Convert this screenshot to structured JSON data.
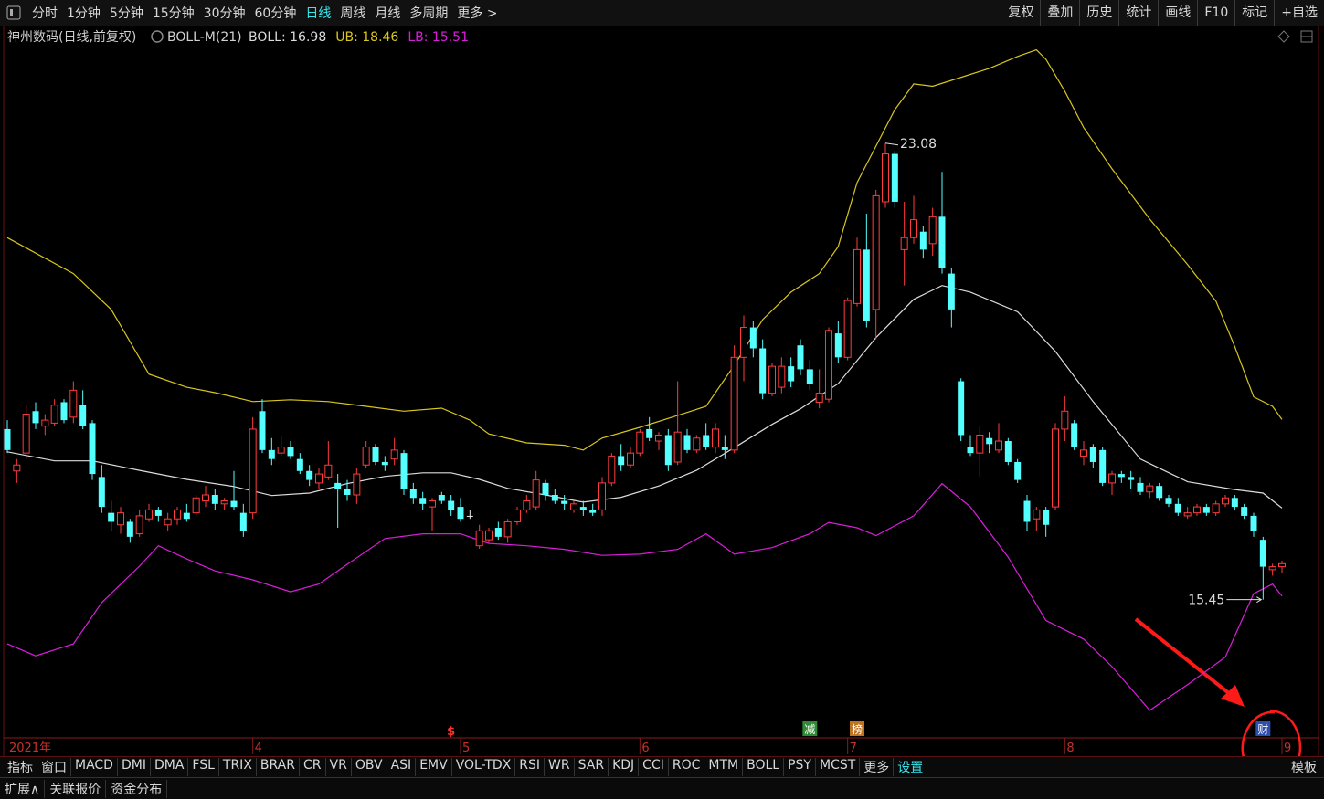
{
  "toolbar": {
    "left": [
      "分时",
      "1分钟",
      "5分钟",
      "15分钟",
      "30分钟",
      "60分钟",
      "日线",
      "周线",
      "月线",
      "多周期",
      "更多 >"
    ],
    "active_index": 6,
    "right": [
      "复权",
      "叠加",
      "历史",
      "统计",
      "画线",
      "F10",
      "标记",
      "+自选"
    ]
  },
  "chart_data": {
    "type": "candlestick",
    "title": "神州数码(日线,前复权)",
    "indicator": "BOLL-M(21)",
    "categories": [
      "2021年",
      null,
      null,
      null,
      null,
      null,
      null,
      null,
      null,
      null,
      null,
      null,
      null,
      null,
      null,
      null,
      null,
      null,
      null,
      null,
      null,
      null,
      null,
      null,
      null,
      null,
      "4",
      null,
      null,
      null,
      null,
      null,
      null,
      null,
      null,
      null,
      null,
      null,
      null,
      null,
      null,
      null,
      null,
      null,
      null,
      null,
      null,
      null,
      "5",
      null,
      null,
      null,
      null,
      null,
      null,
      null,
      null,
      null,
      null,
      null,
      null,
      null,
      null,
      null,
      null,
      null,
      null,
      "6",
      null,
      null,
      null,
      null,
      null,
      null,
      null,
      null,
      null,
      null,
      null,
      null,
      null,
      null,
      null,
      null,
      null,
      null,
      null,
      null,
      null,
      "7",
      null,
      null,
      null,
      null,
      null,
      null,
      null,
      null,
      null,
      null,
      null,
      null,
      null,
      null,
      null,
      null,
      null,
      null,
      null,
      null,
      null,
      null,
      "8",
      null,
      null,
      null,
      null,
      null,
      null,
      null,
      null,
      null,
      null,
      null,
      null,
      null,
      null,
      null,
      null,
      null,
      null,
      null,
      null,
      null,
      null,
      "9"
    ],
    "open": [
      18.3,
      17.6,
      17.9,
      18.6,
      18.35,
      18.4,
      18.75,
      18.5,
      18.7,
      18.4,
      17.5,
      16.9,
      16.7,
      16.75,
      16.55,
      16.8,
      16.95,
      16.7,
      16.8,
      16.9,
      16.9,
      17.1,
      17.2,
      17.05,
      17.1,
      16.9,
      16.9,
      18.6,
      17.95,
      17.9,
      18.0,
      17.8,
      17.6,
      17.4,
      17.5,
      17.4,
      17.3,
      17.2,
      17.7,
      18.0,
      17.75,
      17.8,
      17.9,
      17.3,
      17.15,
      17.0,
      17.2,
      17.1,
      17.0,
      16.85,
      16.35,
      16.45,
      16.65,
      16.5,
      16.75,
      16.95,
      17.0,
      17.4,
      17.2,
      17.1,
      16.95,
      17.0,
      16.95,
      16.95,
      17.4,
      17.85,
      17.7,
      17.9,
      18.3,
      18.1,
      18.2,
      17.75,
      18.2,
      17.95,
      18.2,
      18.0,
      18.0,
      17.95,
      19.5,
      20.0,
      19.65,
      18.9,
      19.0,
      19.35,
      19.7,
      19.3,
      18.75,
      18.8,
      19.9,
      19.5,
      20.4,
      21.3,
      20.3,
      22.1,
      22.9,
      21.3,
      21.5,
      21.6,
      21.4,
      21.85,
      20.9,
      19.1,
      18.0,
      17.9,
      18.15,
      17.95,
      18.1,
      17.75,
      17.1,
      16.8,
      16.95,
      17.0,
      18.3,
      18.4,
      17.85,
      18.0,
      17.95,
      17.4,
      17.55,
      17.5,
      17.4,
      17.25,
      17.35,
      17.15,
      17.05,
      16.85,
      16.9,
      17.0,
      16.9,
      17.05,
      17.15,
      17.0,
      16.85,
      16.45,
      15.95,
      16.0
    ],
    "high": [
      18.45,
      17.8,
      18.7,
      18.75,
      18.55,
      18.8,
      18.8,
      19.1,
      18.95,
      18.45,
      17.7,
      17.1,
      17.0,
      16.8,
      16.95,
      17.05,
      17.0,
      16.9,
      17.0,
      17.05,
      17.2,
      17.35,
      17.3,
      17.15,
      17.6,
      17.05,
      18.5,
      18.8,
      18.15,
      18.2,
      18.1,
      17.9,
      17.7,
      17.65,
      18.1,
      17.55,
      17.45,
      17.65,
      18.1,
      18.05,
      17.85,
      18.15,
      17.95,
      17.4,
      17.25,
      17.15,
      17.25,
      17.2,
      17.15,
      16.95,
      16.7,
      16.65,
      16.75,
      16.8,
      17.0,
      17.2,
      17.6,
      17.45,
      17.3,
      17.2,
      17.1,
      17.1,
      17.05,
      17.5,
      17.9,
      18.05,
      18.0,
      18.3,
      18.5,
      18.25,
      18.3,
      19.1,
      18.3,
      18.2,
      18.4,
      18.4,
      18.2,
      19.7,
      20.2,
      20.1,
      19.8,
      19.4,
      19.5,
      19.5,
      19.8,
      19.45,
      19.3,
      20.0,
      20.1,
      20.5,
      21.5,
      21.9,
      22.3,
      23.08,
      22.95,
      22.1,
      22.2,
      21.7,
      22.0,
      22.6,
      21.0,
      19.15,
      18.2,
      18.35,
      18.25,
      18.4,
      18.15,
      17.8,
      17.2,
      17.0,
      17.0,
      18.4,
      18.85,
      18.45,
      18.1,
      18.05,
      18.0,
      17.6,
      17.6,
      17.6,
      17.5,
      17.4,
      17.4,
      17.2,
      17.15,
      17.0,
      17.05,
      17.05,
      17.1,
      17.2,
      17.2,
      17.05,
      16.9,
      16.5,
      16.05,
      16.1
    ],
    "low": [
      17.9,
      17.4,
      17.8,
      18.3,
      18.2,
      18.35,
      18.4,
      18.4,
      18.3,
      17.45,
      16.9,
      16.6,
      16.55,
      16.4,
      16.5,
      16.75,
      16.75,
      16.6,
      16.7,
      16.75,
      16.85,
      17.0,
      16.95,
      16.95,
      16.95,
      16.5,
      16.8,
      17.9,
      17.7,
      17.85,
      17.8,
      17.55,
      17.35,
      17.3,
      17.45,
      16.65,
      17.1,
      17.05,
      17.65,
      17.7,
      17.6,
      17.7,
      17.2,
      17.05,
      16.95,
      16.6,
      17.05,
      16.85,
      16.75,
      16.8,
      16.3,
      16.4,
      16.45,
      16.4,
      16.7,
      16.9,
      16.95,
      17.1,
      17.05,
      16.95,
      16.9,
      16.85,
      16.85,
      16.85,
      17.35,
      17.6,
      17.65,
      17.85,
      18.1,
      17.95,
      17.6,
      17.7,
      17.9,
      17.9,
      17.95,
      17.9,
      17.8,
      17.9,
      19.1,
      19.5,
      18.8,
      18.85,
      18.9,
      19.0,
      19.2,
      18.95,
      18.65,
      18.75,
      19.4,
      19.45,
      20.35,
      20.0,
      19.8,
      22.0,
      22.0,
      20.7,
      21.4,
      21.15,
      21.2,
      20.9,
      20.0,
      18.1,
      17.85,
      17.5,
      17.9,
      17.9,
      17.7,
      17.4,
      16.6,
      16.6,
      16.5,
      16.95,
      18.1,
      17.95,
      17.7,
      17.65,
      17.35,
      17.2,
      17.4,
      17.3,
      17.2,
      17.15,
      17.1,
      17.0,
      16.85,
      16.8,
      16.85,
      16.85,
      16.85,
      17.0,
      16.95,
      16.8,
      16.5,
      15.45,
      15.85,
      15.9
    ],
    "close": [
      17.95,
      17.7,
      18.55,
      18.4,
      18.45,
      18.7,
      18.45,
      18.95,
      18.35,
      17.55,
      17.0,
      16.75,
      16.9,
      16.5,
      16.85,
      16.95,
      16.85,
      16.8,
      16.95,
      16.8,
      17.15,
      17.2,
      17.05,
      17.1,
      17.0,
      16.6,
      18.3,
      17.95,
      17.8,
      18.0,
      17.85,
      17.6,
      17.45,
      17.55,
      17.7,
      17.3,
      17.2,
      17.55,
      18.0,
      17.75,
      17.7,
      17.95,
      17.3,
      17.15,
      17.05,
      17.1,
      17.1,
      16.95,
      16.8,
      16.85,
      16.6,
      16.6,
      16.5,
      16.75,
      16.95,
      17.1,
      17.45,
      17.2,
      17.1,
      17.05,
      17.05,
      16.95,
      16.9,
      17.4,
      17.85,
      17.7,
      17.9,
      18.25,
      18.15,
      18.2,
      17.7,
      18.25,
      17.95,
      18.15,
      18.0,
      18.3,
      17.95,
      19.5,
      20.0,
      19.65,
      18.9,
      19.35,
      19.35,
      19.1,
      19.3,
      19.05,
      18.9,
      19.95,
      19.5,
      20.45,
      21.3,
      20.1,
      22.2,
      22.9,
      22.1,
      21.5,
      21.8,
      21.3,
      21.85,
      21.0,
      20.3,
      18.2,
      17.9,
      18.2,
      18.05,
      18.1,
      17.75,
      17.45,
      16.75,
      16.95,
      16.7,
      18.3,
      18.6,
      18.0,
      17.95,
      17.75,
      17.4,
      17.55,
      17.5,
      17.45,
      17.25,
      17.35,
      17.15,
      17.05,
      16.9,
      16.9,
      17.0,
      16.9,
      17.05,
      17.15,
      17.0,
      16.85,
      16.6,
      16.0,
      16.0,
      16.05
    ],
    "up_color": "#ff3c3c",
    "down_color": "#54ffff",
    "flat_color": "#e8e8e8",
    "series": [
      {
        "name": "BOLL: 16.98",
        "color": "#dcdcdc",
        "x": [
          0,
          5,
          9,
          14,
          19,
          24,
          28,
          32,
          36,
          40,
          44,
          47,
          50,
          53,
          57,
          61,
          65,
          69,
          73,
          77,
          81,
          84,
          88,
          92,
          96,
          99,
          102,
          107,
          111,
          115,
          120,
          125,
          130,
          133,
          135
        ],
        "values": [
          17.92,
          17.77,
          17.77,
          17.61,
          17.46,
          17.34,
          17.19,
          17.23,
          17.39,
          17.51,
          17.57,
          17.57,
          17.46,
          17.31,
          17.2,
          17.08,
          17.16,
          17.35,
          17.61,
          17.99,
          18.38,
          18.64,
          19.06,
          19.83,
          20.47,
          20.7,
          20.59,
          20.26,
          19.6,
          18.76,
          17.8,
          17.42,
          17.29,
          17.23,
          16.98
        ]
      },
      {
        "name": "UB: 18.46",
        "color": "#d8c61e",
        "x": [
          0,
          7,
          11,
          15,
          19,
          22,
          26,
          30,
          34,
          38,
          42,
          46,
          49,
          51,
          55,
          59,
          61,
          63,
          67,
          71,
          74,
          77,
          80,
          83,
          86,
          88,
          90,
          92,
          94,
          96,
          98,
          100,
          104,
          107,
          109,
          110,
          112,
          114,
          117,
          121,
          125,
          128,
          130,
          132,
          134,
          135
        ],
        "values": [
          21.5,
          20.9,
          20.3,
          19.22,
          19.0,
          18.91,
          18.76,
          18.79,
          18.76,
          18.68,
          18.6,
          18.65,
          18.45,
          18.22,
          18.07,
          18.03,
          17.95,
          18.15,
          18.33,
          18.53,
          18.68,
          19.37,
          20.13,
          20.59,
          20.9,
          21.35,
          22.42,
          23.03,
          23.64,
          24.07,
          24.03,
          24.13,
          24.33,
          24.53,
          24.64,
          24.48,
          23.95,
          23.34,
          22.65,
          21.81,
          21.05,
          20.44,
          19.68,
          18.84,
          18.68,
          18.46
        ]
      },
      {
        "name": "LB: 15.51",
        "color": "#d81fd8",
        "x": [
          0,
          3,
          7,
          10,
          14,
          16,
          19,
          22,
          26,
          30,
          33,
          36,
          40,
          44,
          48,
          51,
          55,
          59,
          63,
          67,
          71,
          74,
          77,
          81,
          85,
          87,
          90,
          92,
          96,
          99,
          102,
          106,
          110,
          114,
          117,
          121,
          125,
          129,
          132,
          134,
          135
        ],
        "values": [
          14.71,
          14.51,
          14.71,
          15.4,
          16.01,
          16.35,
          16.13,
          15.93,
          15.78,
          15.58,
          15.71,
          16.04,
          16.47,
          16.55,
          16.55,
          16.39,
          16.35,
          16.29,
          16.19,
          16.21,
          16.29,
          16.55,
          16.21,
          16.32,
          16.55,
          16.74,
          16.65,
          16.52,
          16.85,
          17.39,
          17.0,
          16.16,
          15.1,
          14.79,
          14.33,
          13.6,
          14.03,
          14.49,
          15.55,
          15.71,
          15.51
        ]
      }
    ],
    "annotations": [
      {
        "index": 93,
        "value": 23.08
      },
      {
        "index": 133,
        "value": 15.45
      }
    ],
    "events": [
      {
        "index": 47,
        "label": "$",
        "color": "#ff3030"
      },
      {
        "index": 85,
        "label": "减",
        "color": "#2e8a34"
      },
      {
        "index": 90,
        "label": "榜",
        "color": "#c0731e"
      },
      {
        "index": 133,
        "label": "财",
        "color": "#2c4fb0"
      }
    ],
    "ylim": [
      13.14,
      24.74
    ]
  },
  "indicator_tabs": {
    "items": [
      "指标",
      "窗口",
      "MACD",
      "DMI",
      "DMA",
      "FSL",
      "TRIX",
      "BRAR",
      "CR",
      "VR",
      "OBV",
      "ASI",
      "EMV",
      "VOL-TDX",
      "RSI",
      "WR",
      "SAR",
      "KDJ",
      "CCI",
      "ROC",
      "MTM",
      "BOLL",
      "PSY",
      "MCST",
      "更多",
      "设置"
    ],
    "active_index": 25,
    "template": "模板"
  },
  "extra_tabs": [
    "扩展∧",
    "关联报价",
    "资金分布"
  ]
}
